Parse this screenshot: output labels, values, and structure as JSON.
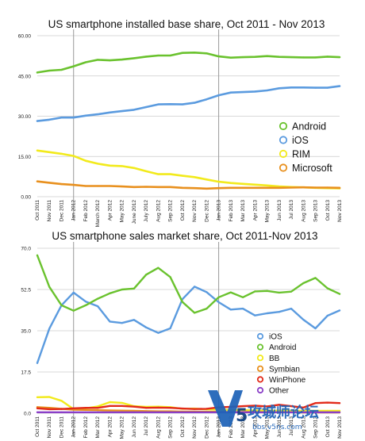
{
  "chart_data": [
    {
      "type": "line",
      "title": "US smartphone installed base share, Oct 2011 - Nov 2013",
      "xlabel": "",
      "ylabel": "",
      "ylim": [
        0,
        60
      ],
      "yticks": [
        "0.00",
        "15.00",
        "30.00",
        "45.00",
        "60.00"
      ],
      "grid": true,
      "legend_position": "right",
      "categories": [
        "Oct 2011",
        "Nov 2011",
        "Dec 2011",
        "Jan 2012",
        "Feb 2012",
        "March 2012",
        "Apr 2012",
        "May 2012",
        "June 2012",
        "July 2012",
        "Aug 2012",
        "Sep 2012",
        "Oct 2012",
        "Nov 2012",
        "Dec 2012",
        "Jan 2013",
        "Feb 2013",
        "Mar 2013",
        "Apr 2013",
        "May 2013",
        "Jun 2013",
        "Jul 2013",
        "Aug 2013",
        "Sep 2013",
        "Oct 2013",
        "Nov 2013"
      ],
      "series": [
        {
          "name": "Android",
          "color": "#6ac22e",
          "values": [
            46.3,
            47.0,
            47.3,
            48.6,
            50.1,
            51.0,
            50.8,
            51.1,
            51.6,
            52.2,
            52.6,
            52.6,
            53.6,
            53.7,
            53.4,
            52.3,
            51.8,
            52.0,
            52.1,
            52.4,
            52.1,
            52.0,
            51.9,
            51.9,
            52.2,
            52.0
          ]
        },
        {
          "name": "iOS",
          "color": "#5b9bdf",
          "values": [
            28.2,
            28.7,
            29.5,
            29.5,
            30.2,
            30.7,
            31.4,
            31.9,
            32.4,
            33.4,
            34.4,
            34.5,
            34.4,
            35.0,
            36.3,
            37.8,
            38.8,
            39.0,
            39.2,
            39.6,
            40.4,
            40.7,
            40.7,
            40.6,
            40.6,
            41.2
          ]
        },
        {
          "name": "RIM",
          "color": "#f2ea1c",
          "values": [
            17.2,
            16.6,
            16.0,
            15.2,
            13.4,
            12.3,
            11.6,
            11.4,
            10.7,
            9.5,
            8.4,
            8.4,
            7.8,
            7.3,
            6.4,
            5.6,
            5.1,
            4.8,
            4.5,
            4.2,
            3.8,
            3.6,
            3.5,
            3.3,
            3.2,
            3.1
          ]
        },
        {
          "name": "Microsoft",
          "color": "#e8901e",
          "values": [
            5.7,
            5.2,
            4.7,
            4.4,
            4.0,
            4.0,
            4.0,
            3.8,
            3.6,
            3.7,
            3.6,
            3.6,
            3.3,
            3.2,
            3.0,
            3.2,
            3.3,
            3.3,
            3.3,
            3.3,
            3.3,
            3.4,
            3.5,
            3.4,
            3.4,
            3.3
          ]
        }
      ]
    },
    {
      "type": "line",
      "title": "US smartphone sales market share, Oct 2011-Nov 2013",
      "xlabel": "",
      "ylabel": "",
      "ylim": [
        0,
        70
      ],
      "yticks": [
        "0.0",
        "17.5",
        "35.0",
        "52.5",
        "70.0"
      ],
      "grid": true,
      "legend_position": "right",
      "categories": [
        "Oct 2011",
        "Nov 2011",
        "Dec 2011",
        "Jan 2012",
        "Feb 2012",
        "Mar 2012",
        "Apr 2012",
        "May 2012",
        "Jun 2012",
        "Jul 2012",
        "Aug 2012",
        "Sep 2012",
        "Oct 2012",
        "Nov 2012",
        "Dec 2012",
        "Jan 2013",
        "Feb 2013",
        "Mar 2013",
        "Apr 2013",
        "May 2013",
        "Jun 2013",
        "Jul 2013",
        "Aug 2013",
        "Sep 2013",
        "Oct 2013",
        "Nov 2013"
      ],
      "series": [
        {
          "name": "iOS",
          "color": "#5b9bdf",
          "values": [
            21.3,
            35.9,
            45.8,
            51.2,
            47.4,
            45.4,
            38.9,
            38.3,
            39.6,
            36.4,
            34.1,
            36.0,
            48.4,
            53.7,
            51.4,
            47.1,
            44.0,
            44.4,
            41.5,
            42.4,
            43.0,
            44.4,
            39.7,
            36.0,
            41.4,
            43.6
          ]
        },
        {
          "name": "Android",
          "color": "#6ac22e",
          "values": [
            67.0,
            53.6,
            45.8,
            43.5,
            45.8,
            48.6,
            50.9,
            52.5,
            52.9,
            58.8,
            61.7,
            57.8,
            47.2,
            42.6,
            44.4,
            49.2,
            51.3,
            49.2,
            51.7,
            51.9,
            51.2,
            51.6,
            55.2,
            57.4,
            53.0,
            50.6
          ]
        },
        {
          "name": "BB",
          "color": "#f2ea1c",
          "values": [
            6.8,
            6.9,
            5.3,
            1.8,
            2.1,
            2.9,
            4.7,
            4.4,
            3.0,
            2.7,
            2.8,
            2.6,
            1.9,
            2.0,
            1.6,
            1.5,
            1.4,
            1.3,
            1.2,
            1.2,
            1.1,
            1.1,
            1.0,
            1.0,
            1.0,
            1.0
          ]
        },
        {
          "name": "Symbian",
          "color": "#e8901e",
          "values": [
            2.6,
            2.3,
            1.9,
            1.5,
            1.4,
            1.3,
            1.2,
            1.1,
            1.0,
            0.9,
            0.8,
            0.8,
            0.7,
            0.7,
            0.6,
            0.6,
            0.5,
            0.5,
            0.5,
            0.4,
            0.4,
            0.4,
            0.3,
            0.3,
            0.3,
            0.3
          ]
        },
        {
          "name": "WinPhone",
          "color": "#e22a1a",
          "values": [
            2.1,
            1.7,
            1.8,
            2.1,
            2.3,
            2.3,
            3.1,
            3.1,
            2.8,
            2.3,
            2.4,
            2.3,
            2.0,
            1.8,
            1.9,
            2.5,
            2.7,
            3.0,
            3.2,
            2.9,
            3.6,
            3.0,
            2.4,
            4.3,
            4.5,
            4.3
          ]
        },
        {
          "name": "Other",
          "color": "#8a3fc7",
          "values": [
            0.4,
            0.4,
            0.4,
            0.4,
            0.4,
            0.4,
            0.4,
            0.4,
            0.4,
            0.4,
            0.4,
            0.4,
            0.4,
            0.4,
            0.4,
            0.4,
            0.4,
            0.4,
            0.4,
            0.4,
            0.4,
            0.4,
            0.4,
            0.4,
            0.4,
            0.4
          ]
        }
      ]
    }
  ],
  "watermark": {
    "logo_letter": "V",
    "logo_digit": "5",
    "main_text": "攻城师论坛",
    "sub_text": "bbs.v5ns.com",
    "color": "#1e63b8"
  }
}
